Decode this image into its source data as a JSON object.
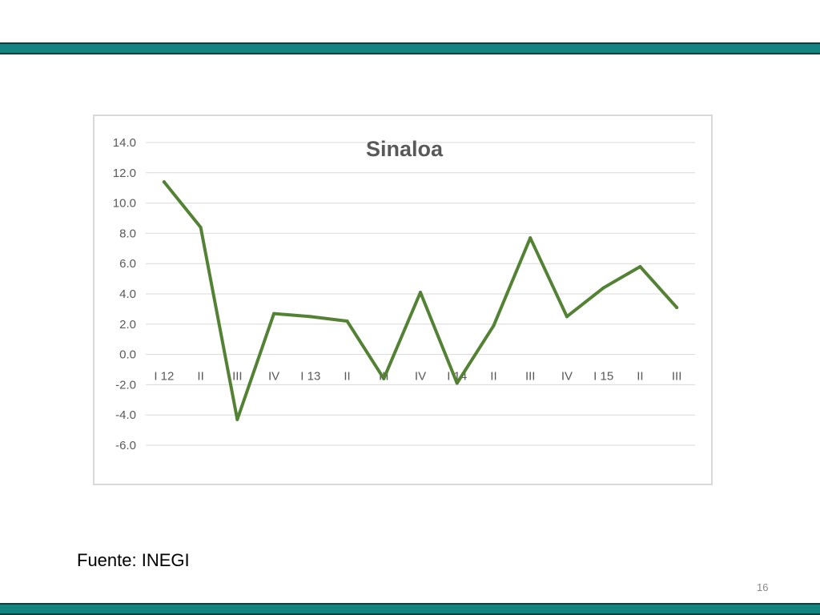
{
  "footer": {
    "source": "Fuente: INEGI",
    "page_number": "16"
  },
  "colors": {
    "band": "#148480",
    "line": "#548235",
    "grid": "#d9d9d9",
    "title": "#595959"
  },
  "chart_data": {
    "type": "line",
    "title": "Sinaloa",
    "xlabel": "",
    "ylabel": "",
    "categories": [
      "I 12",
      "II",
      "III",
      "IV",
      "I 13",
      "II",
      "III",
      "IV",
      "I 14",
      "II",
      "III",
      "IV",
      "I 15",
      "II",
      "III"
    ],
    "series": [
      {
        "values": [
          11.4,
          8.4,
          -4.3,
          2.7,
          2.5,
          2.2,
          -1.6,
          4.1,
          -1.9,
          1.9,
          7.7,
          2.5,
          4.4,
          5.8,
          3.1
        ]
      }
    ],
    "ylim": [
      -6.0,
      14.0
    ],
    "yticks": [
      "14.0",
      "12.0",
      "10.0",
      "8.0",
      "6.0",
      "4.0",
      "2.0",
      "0.0",
      "-2.0",
      "-4.0",
      "-6.0"
    ],
    "grid": true,
    "legend": "none"
  }
}
